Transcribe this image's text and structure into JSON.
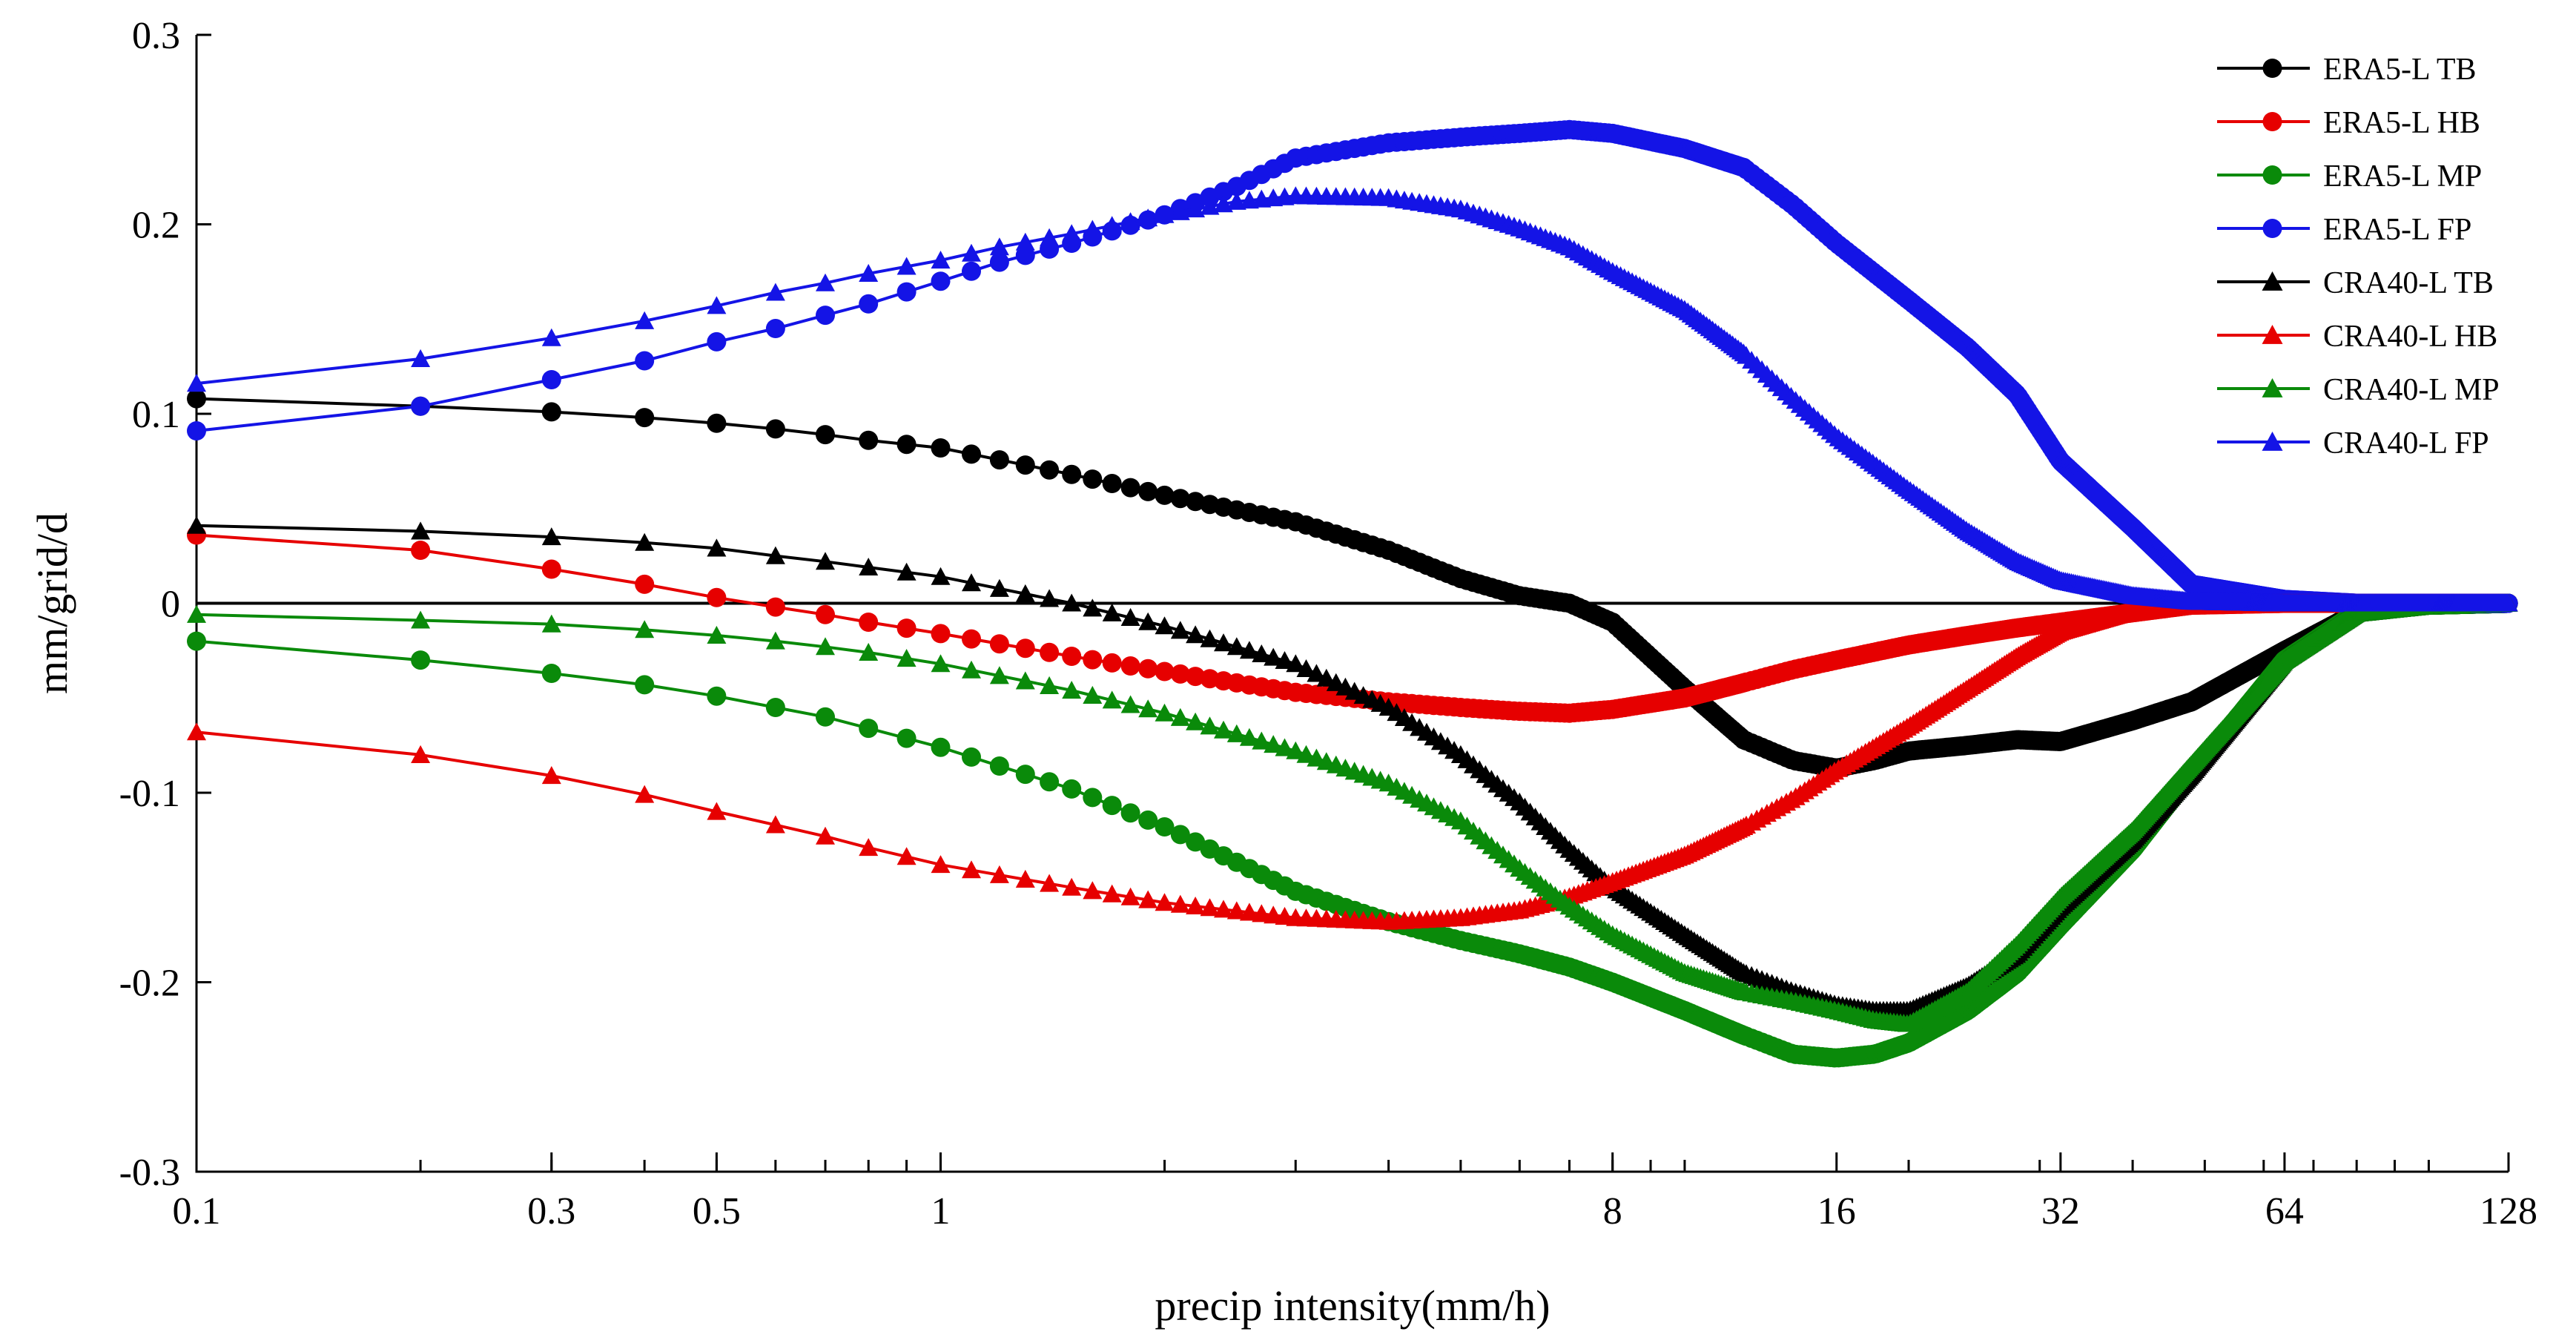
{
  "chart_data": {
    "type": "line",
    "title": "",
    "xlabel": "precip intensity(mm/h)",
    "ylabel": "mm/grid/d",
    "xscale": "log",
    "xlim": [
      0.1,
      128
    ],
    "ylim": [
      -0.3,
      0.3
    ],
    "xticks": [
      {
        "value": 0.1,
        "label": "0.1"
      },
      {
        "value": 0.3,
        "label": "0.3"
      },
      {
        "value": 0.5,
        "label": "0.5"
      },
      {
        "value": 1,
        "label": "1"
      },
      {
        "value": 8,
        "label": "8"
      },
      {
        "value": 16,
        "label": "16"
      },
      {
        "value": 32,
        "label": "32"
      },
      {
        "value": 64,
        "label": "64"
      },
      {
        "value": 128,
        "label": "128"
      }
    ],
    "yticks": [
      {
        "value": 0.3,
        "label": "0.3"
      },
      {
        "value": 0.2,
        "label": "0.2"
      },
      {
        "value": 0.1,
        "label": "0.1"
      },
      {
        "value": 0,
        "label": "0"
      },
      {
        "value": -0.1,
        "label": "-0.1"
      },
      {
        "value": -0.2,
        "label": "-0.2"
      },
      {
        "value": -0.3,
        "label": "-0.3"
      }
    ],
    "zero_line": true,
    "legend_position": "top-right",
    "series": [
      {
        "name": "ERA5-L TB",
        "color": "#000000",
        "marker": "circle",
        "x": [
          0.1,
          0.2,
          0.3,
          0.4,
          0.5,
          0.6,
          0.7,
          0.8,
          1,
          1.5,
          2,
          3,
          4,
          5,
          6,
          7,
          8,
          10,
          12,
          14,
          16,
          18,
          20,
          24,
          28,
          32,
          40,
          48,
          64,
          80,
          100,
          128
        ],
        "y": [
          0.108,
          0.104,
          0.101,
          0.098,
          0.095,
          0.092,
          0.089,
          0.086,
          0.082,
          0.068,
          0.057,
          0.043,
          0.028,
          0.013,
          0.004,
          0.0,
          -0.01,
          -0.045,
          -0.072,
          -0.083,
          -0.087,
          -0.083,
          -0.078,
          -0.075,
          -0.072,
          -0.073,
          -0.062,
          -0.052,
          -0.025,
          -0.005,
          -0.001,
          0.0
        ]
      },
      {
        "name": "ERA5-L HB",
        "color": "#e60000",
        "marker": "circle",
        "x": [
          0.1,
          0.2,
          0.3,
          0.4,
          0.5,
          0.6,
          0.7,
          0.8,
          1,
          1.5,
          2,
          3,
          4,
          5,
          6,
          7,
          8,
          10,
          12,
          14,
          16,
          20,
          24,
          28,
          32,
          40,
          48,
          64,
          80,
          100,
          128
        ],
        "y": [
          0.036,
          0.028,
          0.018,
          0.01,
          0.003,
          -0.002,
          -0.006,
          -0.01,
          -0.016,
          -0.028,
          -0.036,
          -0.047,
          -0.052,
          -0.055,
          -0.057,
          -0.058,
          -0.056,
          -0.05,
          -0.042,
          -0.035,
          -0.03,
          -0.022,
          -0.017,
          -0.013,
          -0.01,
          -0.005,
          -0.001,
          0.0,
          0.0,
          0.0,
          0.0
        ]
      },
      {
        "name": "ERA5-L MP",
        "color": "#0a8a0a",
        "marker": "circle",
        "x": [
          0.1,
          0.2,
          0.3,
          0.4,
          0.5,
          0.6,
          0.7,
          0.8,
          1,
          1.5,
          2,
          3,
          4,
          5,
          6,
          7,
          8,
          10,
          12,
          14,
          16,
          18,
          20,
          24,
          28,
          32,
          40,
          48,
          64,
          80,
          100,
          128
        ],
        "y": [
          -0.02,
          -0.03,
          -0.037,
          -0.043,
          -0.049,
          -0.055,
          -0.06,
          -0.066,
          -0.076,
          -0.098,
          -0.118,
          -0.152,
          -0.168,
          -0.178,
          -0.185,
          -0.192,
          -0.2,
          -0.215,
          -0.228,
          -0.238,
          -0.24,
          -0.238,
          -0.232,
          -0.215,
          -0.195,
          -0.17,
          -0.13,
          -0.09,
          -0.03,
          -0.005,
          -0.001,
          0.0
        ]
      },
      {
        "name": "ERA5-L FP",
        "color": "#1414e6",
        "marker": "circle",
        "x": [
          0.1,
          0.2,
          0.3,
          0.4,
          0.5,
          0.6,
          0.7,
          0.8,
          1,
          1.2,
          1.5,
          2,
          2.5,
          3,
          4,
          5,
          6,
          7,
          8,
          10,
          12,
          14,
          16,
          20,
          24,
          28,
          32,
          40,
          48,
          64,
          80,
          100,
          128
        ],
        "y": [
          0.091,
          0.104,
          0.118,
          0.128,
          0.138,
          0.145,
          0.152,
          0.158,
          0.17,
          0.18,
          0.19,
          0.205,
          0.22,
          0.235,
          0.243,
          0.246,
          0.248,
          0.25,
          0.248,
          0.24,
          0.23,
          0.21,
          0.19,
          0.16,
          0.135,
          0.11,
          0.075,
          0.04,
          0.01,
          0.002,
          0.0,
          0.0,
          0.0
        ]
      },
      {
        "name": "CRA40-L TB",
        "color": "#000000",
        "marker": "triangle",
        "x": [
          0.1,
          0.2,
          0.3,
          0.4,
          0.5,
          0.6,
          0.7,
          0.8,
          1,
          1.5,
          2,
          3,
          4,
          5,
          6,
          7,
          8,
          10,
          12,
          14,
          16,
          18,
          20,
          24,
          28,
          32,
          40,
          48,
          64,
          80,
          100,
          128
        ],
        "y": [
          0.041,
          0.038,
          0.035,
          0.032,
          0.029,
          0.025,
          0.022,
          0.019,
          0.014,
          0.0,
          -0.012,
          -0.032,
          -0.055,
          -0.08,
          -0.105,
          -0.13,
          -0.15,
          -0.175,
          -0.195,
          -0.205,
          -0.212,
          -0.215,
          -0.215,
          -0.202,
          -0.185,
          -0.16,
          -0.125,
          -0.09,
          -0.03,
          -0.005,
          -0.001,
          0.0
        ]
      },
      {
        "name": "CRA40-L HB",
        "color": "#e60000",
        "marker": "triangle",
        "x": [
          0.1,
          0.2,
          0.3,
          0.4,
          0.5,
          0.6,
          0.7,
          0.8,
          1,
          1.5,
          2,
          3,
          4,
          5,
          6,
          7,
          8,
          10,
          12,
          14,
          16,
          20,
          24,
          28,
          32,
          40,
          48,
          64,
          80,
          100,
          128
        ],
        "y": [
          -0.068,
          -0.08,
          -0.091,
          -0.101,
          -0.11,
          -0.117,
          -0.123,
          -0.129,
          -0.138,
          -0.15,
          -0.158,
          -0.166,
          -0.168,
          -0.166,
          -0.162,
          -0.155,
          -0.147,
          -0.133,
          -0.118,
          -0.103,
          -0.088,
          -0.065,
          -0.045,
          -0.028,
          -0.015,
          -0.004,
          -0.001,
          0.0,
          0.0,
          0.0,
          0.0
        ]
      },
      {
        "name": "CRA40-L MP",
        "color": "#0a8a0a",
        "marker": "triangle",
        "x": [
          0.1,
          0.2,
          0.3,
          0.4,
          0.5,
          0.6,
          0.7,
          0.8,
          1,
          1.5,
          2,
          3,
          4,
          5,
          6,
          7,
          8,
          10,
          12,
          14,
          16,
          18,
          20,
          24,
          28,
          32,
          40,
          48,
          64,
          80,
          100,
          128
        ],
        "y": [
          -0.006,
          -0.009,
          -0.011,
          -0.014,
          -0.017,
          -0.02,
          -0.023,
          -0.026,
          -0.032,
          -0.046,
          -0.058,
          -0.078,
          -0.095,
          -0.115,
          -0.14,
          -0.16,
          -0.175,
          -0.195,
          -0.205,
          -0.21,
          -0.215,
          -0.22,
          -0.222,
          -0.205,
          -0.18,
          -0.155,
          -0.12,
          -0.085,
          -0.03,
          -0.005,
          -0.001,
          0.0
        ]
      },
      {
        "name": "CRA40-L FP",
        "color": "#1414e6",
        "marker": "triangle",
        "x": [
          0.1,
          0.2,
          0.3,
          0.4,
          0.5,
          0.6,
          0.7,
          0.8,
          1,
          1.2,
          1.5,
          2,
          2.5,
          3,
          4,
          5,
          6,
          7,
          8,
          10,
          12,
          14,
          16,
          20,
          24,
          28,
          32,
          40,
          48,
          64,
          80,
          100,
          128
        ],
        "y": [
          0.116,
          0.129,
          0.14,
          0.149,
          0.157,
          0.164,
          0.169,
          0.174,
          0.181,
          0.188,
          0.195,
          0.205,
          0.212,
          0.215,
          0.214,
          0.208,
          0.198,
          0.188,
          0.175,
          0.155,
          0.132,
          0.108,
          0.088,
          0.06,
          0.038,
          0.022,
          0.012,
          0.004,
          0.001,
          0.0,
          0.0,
          0.0,
          0.0
        ]
      }
    ]
  }
}
